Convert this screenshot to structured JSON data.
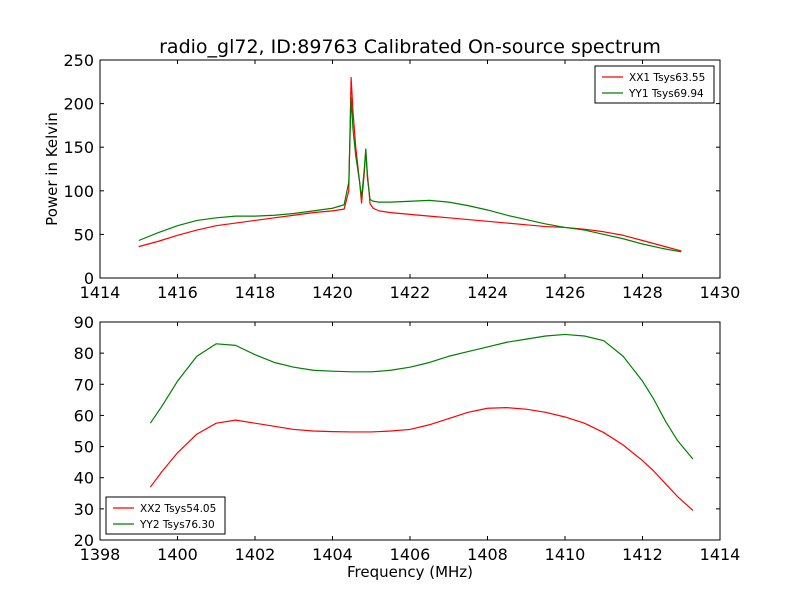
{
  "chart_data": [
    {
      "type": "line",
      "title": "radio_gl72, ID:89763 Calibrated On-source spectrum",
      "xlabel": "",
      "ylabel": "Power in Kelvin",
      "xlim": [
        1414,
        1430
      ],
      "ylim": [
        0,
        250
      ],
      "xticks": [
        1414,
        1416,
        1418,
        1420,
        1422,
        1424,
        1426,
        1428,
        1430
      ],
      "yticks": [
        0,
        50,
        100,
        150,
        200,
        250
      ],
      "grid": false,
      "legend_position": "top-right",
      "series": [
        {
          "name": "XX1 Tsys63.55",
          "color": "#ff0000",
          "x": [
            1415.0,
            1415.5,
            1416.0,
            1416.5,
            1417.0,
            1417.5,
            1418.0,
            1418.5,
            1419.0,
            1419.5,
            1420.0,
            1420.3,
            1420.42,
            1420.48,
            1420.53,
            1420.6,
            1420.7,
            1420.75,
            1420.82,
            1420.86,
            1420.9,
            1420.97,
            1421.05,
            1421.2,
            1421.5,
            1422.0,
            1422.5,
            1423.0,
            1423.5,
            1424.0,
            1424.5,
            1425.0,
            1425.5,
            1426.0,
            1426.5,
            1427.0,
            1427.5,
            1428.0,
            1428.5,
            1429.0
          ],
          "y": [
            36,
            42,
            49,
            55,
            60,
            63,
            66,
            69,
            72,
            75,
            77,
            79,
            100,
            230,
            190,
            150,
            110,
            86,
            120,
            146,
            120,
            85,
            80,
            77,
            75,
            73,
            71,
            69,
            67,
            65,
            63,
            61,
            59,
            58,
            56,
            53,
            49,
            43,
            37,
            31
          ]
        },
        {
          "name": "YY1 Tsys69.94",
          "color": "#008000",
          "x": [
            1415.0,
            1415.5,
            1416.0,
            1416.5,
            1417.0,
            1417.5,
            1418.0,
            1418.5,
            1419.0,
            1419.5,
            1420.0,
            1420.3,
            1420.42,
            1420.48,
            1420.53,
            1420.6,
            1420.7,
            1420.75,
            1420.82,
            1420.86,
            1420.9,
            1420.97,
            1421.05,
            1421.2,
            1421.5,
            1422.0,
            1422.5,
            1423.0,
            1423.5,
            1424.0,
            1424.5,
            1425.0,
            1425.5,
            1426.0,
            1426.5,
            1427.0,
            1427.5,
            1428.0,
            1428.5,
            1429.0
          ],
          "y": [
            43,
            52,
            60,
            66,
            69,
            71,
            71,
            72,
            74,
            77,
            80,
            84,
            110,
            207,
            170,
            140,
            110,
            92,
            125,
            148,
            115,
            90,
            88,
            87,
            87,
            88,
            89,
            87,
            83,
            78,
            72,
            67,
            62,
            58,
            55,
            50,
            45,
            39,
            34,
            30
          ]
        }
      ]
    },
    {
      "type": "line",
      "title": "",
      "xlabel": "Frequency (MHz)",
      "ylabel": "",
      "xlim": [
        1398,
        1414
      ],
      "ylim": [
        20,
        90
      ],
      "xticks": [
        1398,
        1400,
        1402,
        1404,
        1406,
        1408,
        1410,
        1412,
        1414
      ],
      "yticks": [
        20,
        30,
        40,
        50,
        60,
        70,
        80,
        90
      ],
      "grid": false,
      "legend_position": "bottom-left",
      "series": [
        {
          "name": "XX2 Tsys54.05",
          "color": "#ff0000",
          "x": [
            1399.3,
            1399.6,
            1400.0,
            1400.5,
            1401.0,
            1401.5,
            1402.0,
            1402.5,
            1403.0,
            1403.5,
            1404.0,
            1404.5,
            1405.0,
            1405.5,
            1406.0,
            1406.5,
            1407.0,
            1407.5,
            1408.0,
            1408.5,
            1409.0,
            1409.5,
            1410.0,
            1410.5,
            1411.0,
            1411.5,
            1412.0,
            1412.3,
            1412.6,
            1412.9,
            1413.3
          ],
          "y": [
            37,
            42,
            48,
            54,
            57.5,
            58.5,
            57.5,
            56.5,
            55.5,
            55,
            54.8,
            54.7,
            54.7,
            55,
            55.5,
            57,
            59,
            61,
            62.3,
            62.5,
            62,
            61,
            59.5,
            57.5,
            54.5,
            50.5,
            45.5,
            42,
            38,
            34,
            29.5
          ]
        },
        {
          "name": "YY2 Tsys76.30",
          "color": "#008000",
          "x": [
            1399.3,
            1399.6,
            1400.0,
            1400.5,
            1401.0,
            1401.5,
            1402.0,
            1402.5,
            1403.0,
            1403.5,
            1404.0,
            1404.5,
            1405.0,
            1405.5,
            1406.0,
            1406.5,
            1407.0,
            1407.5,
            1408.0,
            1408.5,
            1409.0,
            1409.5,
            1410.0,
            1410.5,
            1411.0,
            1411.5,
            1412.0,
            1412.3,
            1412.6,
            1412.9,
            1413.3
          ],
          "y": [
            57.5,
            63,
            71,
            79,
            83,
            82.5,
            79.5,
            77,
            75.5,
            74.5,
            74.2,
            74,
            74,
            74.5,
            75.5,
            77,
            79,
            80.5,
            82,
            83.5,
            84.5,
            85.5,
            86,
            85.5,
            84,
            79,
            71,
            65,
            58,
            52,
            46
          ]
        }
      ]
    }
  ]
}
